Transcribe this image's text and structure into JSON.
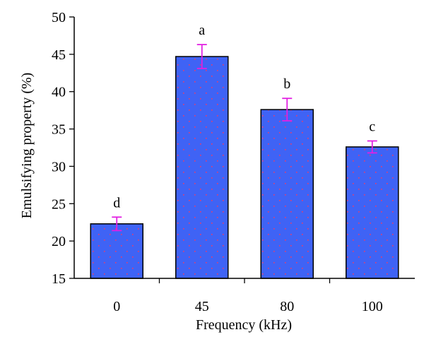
{
  "chart_data": {
    "type": "bar",
    "xlabel": "Frequency (kHz)",
    "ylabel": "Emulsifying property (%)",
    "categories": [
      "0",
      "45",
      "80",
      "100"
    ],
    "values": [
      22.3,
      44.7,
      37.6,
      32.6
    ],
    "errors": [
      0.9,
      1.6,
      1.5,
      0.8
    ],
    "significance_labels": [
      "d",
      "a",
      "b",
      "c"
    ],
    "ylim": [
      15,
      50
    ],
    "yticks": [
      15,
      20,
      25,
      30,
      35,
      40,
      45,
      50
    ],
    "grid": false,
    "legend": "none",
    "colors": {
      "bar_fill": "#3F63F5",
      "bar_dots": "#E83C6E",
      "error_bar": "#E21FE2",
      "axis": "#000000"
    }
  }
}
